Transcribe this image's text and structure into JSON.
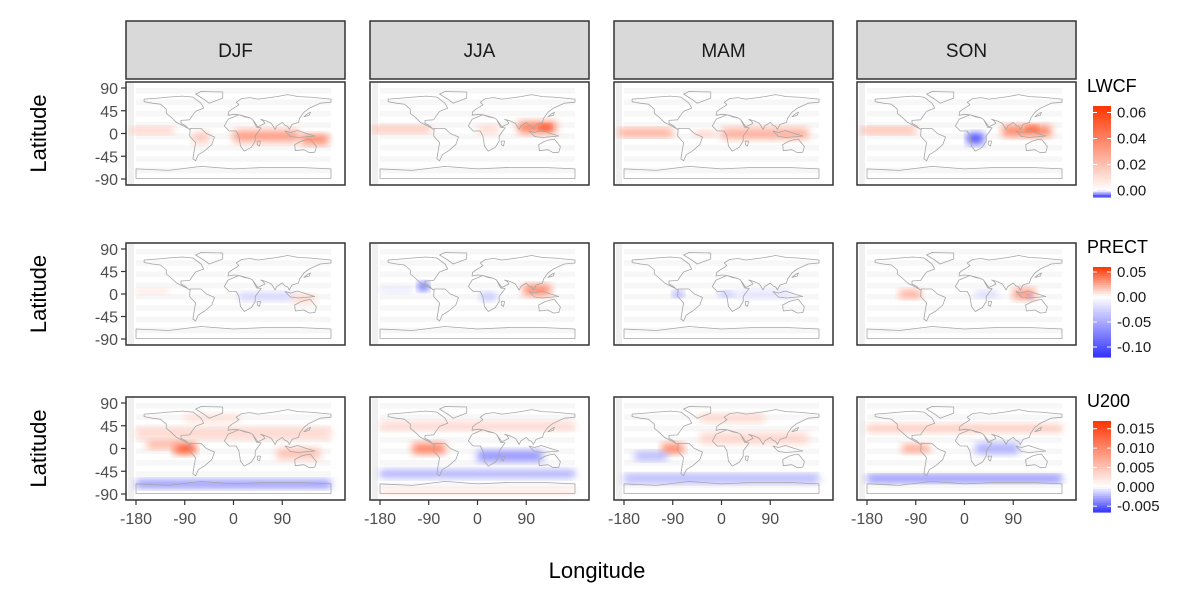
{
  "chart_data": {
    "type": "heatmap",
    "title": "",
    "xlabel": "Longitude",
    "ylabel": "Latitude",
    "facet_columns": [
      "DJF",
      "JJA",
      "MAM",
      "SON"
    ],
    "x_ticks": [
      -180,
      -90,
      0,
      90
    ],
    "x_tick_labels": [
      "-180",
      "-90",
      "0",
      "90"
    ],
    "y_ticks": [
      90,
      45,
      0,
      -45,
      -90
    ],
    "y_tick_labels": [
      "90",
      "45",
      "0",
      "-45",
      "-90"
    ],
    "xlim": [
      -180,
      180
    ],
    "ylim": [
      -90,
      90
    ],
    "colors": {
      "low": "#3333ff",
      "mid": "#ffffff",
      "high": "#ff3300",
      "land_outline": "#a6a6a6"
    },
    "variables": [
      {
        "name": "LWCF",
        "legend_title": "LWCF",
        "range": [
          -0.005,
          0.065
        ],
        "legend_ticks": [
          0.06,
          0.04,
          0.02,
          0.0
        ],
        "legend_tick_labels": [
          "0.06",
          "0.04",
          "0.02",
          "0.00"
        ],
        "features": {
          "DJF": [
            {
              "lon": 60,
              "lat": -5,
              "w": 120,
              "h": 22,
              "v": 0.035
            },
            {
              "lon": 150,
              "lat": -12,
              "w": 50,
              "h": 18,
              "v": 0.045
            },
            {
              "lon": -150,
              "lat": 6,
              "w": 80,
              "h": 12,
              "v": 0.02
            },
            {
              "lon": -60,
              "lat": -8,
              "w": 30,
              "h": 20,
              "v": 0.02
            }
          ],
          "JJA": [
            {
              "lon": 110,
              "lat": 12,
              "w": 70,
              "h": 22,
              "v": 0.045
            },
            {
              "lon": 125,
              "lat": 12,
              "w": 20,
              "h": 10,
              "v": 0.065
            },
            {
              "lon": -140,
              "lat": 8,
              "w": 110,
              "h": 12,
              "v": 0.025
            },
            {
              "lon": 20,
              "lat": 8,
              "w": 40,
              "h": 15,
              "v": 0.015
            }
          ],
          "MAM": [
            {
              "lon": 80,
              "lat": 0,
              "w": 160,
              "h": 20,
              "v": 0.03
            },
            {
              "lon": -140,
              "lat": 2,
              "w": 100,
              "h": 14,
              "v": 0.035
            },
            {
              "lon": -30,
              "lat": 0,
              "w": 40,
              "h": 10,
              "v": 0.02
            }
          ],
          "SON": [
            {
              "lon": 115,
              "lat": 5,
              "w": 90,
              "h": 20,
              "v": 0.045
            },
            {
              "lon": 125,
              "lat": 10,
              "w": 20,
              "h": 10,
              "v": 0.06
            },
            {
              "lon": -140,
              "lat": 6,
              "w": 100,
              "h": 12,
              "v": 0.03
            },
            {
              "lon": 20,
              "lat": -10,
              "w": 30,
              "h": 20,
              "v": -0.005
            }
          ]
        }
      },
      {
        "name": "PRECT",
        "legend_title": "PRECT",
        "range": [
          -0.12,
          0.06
        ],
        "legend_ticks": [
          0.05,
          0.0,
          -0.05,
          -0.1
        ],
        "legend_tick_labels": [
          "0.05",
          "0.00",
          "-0.05",
          "-0.10"
        ],
        "features": {
          "DJF": [
            {
              "lon": 60,
              "lat": -5,
              "w": 100,
              "h": 15,
              "v": -0.03
            },
            {
              "lon": 130,
              "lat": -10,
              "w": 40,
              "h": 15,
              "v": 0.015
            },
            {
              "lon": -150,
              "lat": 5,
              "w": 60,
              "h": 10,
              "v": 0.01
            }
          ],
          "JJA": [
            {
              "lon": -100,
              "lat": 15,
              "w": 20,
              "h": 15,
              "v": -0.11
            },
            {
              "lon": 110,
              "lat": 8,
              "w": 50,
              "h": 20,
              "v": 0.04
            },
            {
              "lon": 20,
              "lat": -5,
              "w": 30,
              "h": 15,
              "v": -0.04
            },
            {
              "lon": -150,
              "lat": 8,
              "w": 60,
              "h": 10,
              "v": -0.02
            }
          ],
          "MAM": [
            {
              "lon": -80,
              "lat": 0,
              "w": 20,
              "h": 10,
              "v": -0.08
            },
            {
              "lon": 10,
              "lat": 0,
              "w": 30,
              "h": 10,
              "v": -0.05
            },
            {
              "lon": 80,
              "lat": 0,
              "w": 100,
              "h": 15,
              "v": -0.02
            }
          ],
          "SON": [
            {
              "lon": -100,
              "lat": 0,
              "w": 40,
              "h": 15,
              "v": 0.03
            },
            {
              "lon": 110,
              "lat": 0,
              "w": 40,
              "h": 20,
              "v": 0.035
            },
            {
              "lon": 120,
              "lat": -5,
              "w": 10,
              "h": 8,
              "v": -0.08
            },
            {
              "lon": 40,
              "lat": 0,
              "w": 40,
              "h": 12,
              "v": -0.03
            }
          ]
        }
      },
      {
        "name": "U200",
        "legend_title": "U200",
        "range": [
          -0.0065,
          0.017
        ],
        "legend_ticks": [
          0.015,
          0.01,
          0.005,
          0.0,
          -0.005
        ],
        "legend_tick_labels": [
          "0.015",
          "0.010",
          "0.005",
          "0.000",
          "-0.005"
        ],
        "features": {
          "DJF": [
            {
              "lon": -90,
              "lat": 0,
              "w": 40,
              "h": 20,
              "v": 0.016
            },
            {
              "lon": -130,
              "lat": 8,
              "w": 60,
              "h": 15,
              "v": 0.008
            },
            {
              "lon": 0,
              "lat": 30,
              "w": 360,
              "h": 20,
              "v": 0.004
            },
            {
              "lon": 0,
              "lat": -70,
              "w": 360,
              "h": 15,
              "v": -0.004
            },
            {
              "lon": 120,
              "lat": -10,
              "w": 80,
              "h": 20,
              "v": 0.006
            },
            {
              "lon": -40,
              "lat": 60,
              "w": 100,
              "h": 15,
              "v": 0.003
            }
          ],
          "JJA": [
            {
              "lon": -90,
              "lat": 0,
              "w": 60,
              "h": 20,
              "v": 0.012
            },
            {
              "lon": 60,
              "lat": -15,
              "w": 120,
              "h": 20,
              "v": -0.004
            },
            {
              "lon": 0,
              "lat": -50,
              "w": 360,
              "h": 15,
              "v": -0.003
            },
            {
              "lon": 0,
              "lat": 45,
              "w": 360,
              "h": 15,
              "v": 0.004
            },
            {
              "lon": 0,
              "lat": -85,
              "w": 360,
              "h": 10,
              "v": 0.003
            }
          ],
          "MAM": [
            {
              "lon": -90,
              "lat": 0,
              "w": 40,
              "h": 18,
              "v": 0.012
            },
            {
              "lon": -130,
              "lat": -15,
              "w": 60,
              "h": 15,
              "v": -0.003
            },
            {
              "lon": 0,
              "lat": -60,
              "w": 360,
              "h": 15,
              "v": -0.003
            },
            {
              "lon": 60,
              "lat": 20,
              "w": 200,
              "h": 20,
              "v": 0.004
            },
            {
              "lon": 20,
              "lat": 60,
              "w": 120,
              "h": 15,
              "v": 0.004
            }
          ],
          "SON": [
            {
              "lon": -90,
              "lat": 0,
              "w": 50,
              "h": 15,
              "v": 0.009
            },
            {
              "lon": 0,
              "lat": -60,
              "w": 360,
              "h": 12,
              "v": -0.005
            },
            {
              "lon": 60,
              "lat": 0,
              "w": 80,
              "h": 20,
              "v": -0.003
            },
            {
              "lon": 0,
              "lat": 40,
              "w": 360,
              "h": 15,
              "v": 0.005
            }
          ]
        }
      }
    ]
  }
}
